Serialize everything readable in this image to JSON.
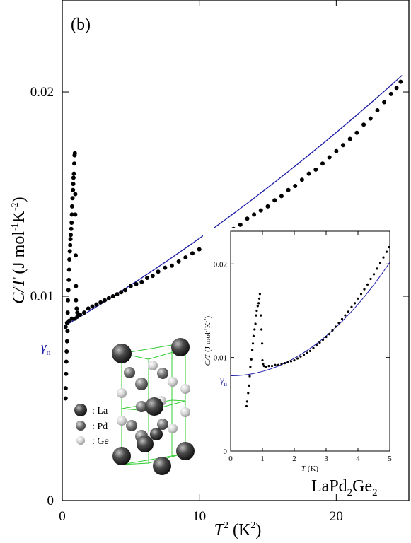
{
  "chart_data": [
    {
      "type": "scatter",
      "panel_label": "(b)",
      "compound": {
        "base": "LaPd",
        "sub1": "2",
        "mid": "Ge",
        "sub2": "2"
      },
      "xlabel": {
        "var": "T",
        "sup": "2",
        "unit": " (K",
        "unit_sup": "2",
        "close": ")"
      },
      "ylabel": {
        "var": "C/T",
        "unit": " (J mol",
        "s1": "-1",
        "k": "K",
        "s2": "-2",
        "close": ")"
      },
      "xlim": [
        0,
        25.3
      ],
      "ylim": [
        0,
        0.0245
      ],
      "x_ticks": [
        {
          "v": 0,
          "label": "0"
        },
        {
          "v": 10,
          "label": "10"
        },
        {
          "v": 20,
          "label": "20"
        }
      ],
      "y_ticks": [
        {
          "v": 0,
          "label": "0"
        },
        {
          "v": 0.01,
          "label": "0.01"
        },
        {
          "v": 0.02,
          "label": "0.02"
        }
      ],
      "gamma_label": "γn",
      "gamma_value": 0.00848,
      "fit": {
        "color": "#1a1aa8",
        "gamma": 0.00848,
        "beta": 0.000393,
        "delta": 4.2e-06,
        "x_range": [
          0.3,
          24.8
        ]
      },
      "points_color": "#000000",
      "series_main": [
        [
          0.25,
          0.0085
        ],
        [
          0.35,
          0.0087
        ],
        [
          0.5,
          0.0088
        ],
        [
          0.7,
          0.0089
        ],
        [
          0.9,
          0.0089
        ],
        [
          1.1,
          0.009
        ],
        [
          1.3,
          0.0091
        ],
        [
          1.6,
          0.0092
        ],
        [
          1.9,
          0.0094
        ],
        [
          2.2,
          0.0095
        ],
        [
          2.5,
          0.0096
        ],
        [
          2.8,
          0.0097
        ],
        [
          3.1,
          0.0098
        ],
        [
          3.4,
          0.0099
        ],
        [
          3.7,
          0.01
        ],
        [
          4.0,
          0.0101
        ],
        [
          4.3,
          0.0102
        ],
        [
          4.6,
          0.0103
        ],
        [
          5.0,
          0.0105
        ],
        [
          5.4,
          0.0106
        ],
        [
          5.8,
          0.0107
        ],
        [
          6.2,
          0.0109
        ],
        [
          6.6,
          0.011
        ],
        [
          7.0,
          0.0112
        ],
        [
          7.5,
          0.0114
        ],
        [
          8.0,
          0.0115
        ],
        [
          8.5,
          0.0117
        ],
        [
          9.0,
          0.0119
        ],
        [
          9.5,
          0.0121
        ],
        [
          10.0,
          0.0123
        ],
        [
          10.5,
          0.0125
        ],
        [
          11.0,
          0.0127
        ],
        [
          11.5,
          0.0129
        ],
        [
          12.0,
          0.0131
        ],
        [
          12.5,
          0.0133
        ],
        [
          13.0,
          0.0135
        ],
        [
          13.5,
          0.0138
        ],
        [
          14.0,
          0.014
        ],
        [
          14.5,
          0.0142
        ],
        [
          15.0,
          0.0144
        ],
        [
          15.5,
          0.0147
        ],
        [
          16.0,
          0.0149
        ],
        [
          16.5,
          0.0152
        ],
        [
          17.0,
          0.0154
        ],
        [
          17.5,
          0.0157
        ],
        [
          18.0,
          0.016
        ],
        [
          18.5,
          0.0162
        ],
        [
          19.0,
          0.0165
        ],
        [
          19.5,
          0.0168
        ],
        [
          20.0,
          0.0171
        ],
        [
          20.5,
          0.0174
        ],
        [
          21.0,
          0.0177
        ],
        [
          21.5,
          0.018
        ],
        [
          22.0,
          0.0184
        ],
        [
          22.5,
          0.0187
        ],
        [
          23.0,
          0.0191
        ],
        [
          23.5,
          0.0195
        ],
        [
          24.0,
          0.0199
        ],
        [
          24.4,
          0.0202
        ],
        [
          24.7,
          0.0205
        ]
      ],
      "series_transition": [
        [
          0.25,
          0.005
        ],
        [
          0.25,
          0.0055
        ],
        [
          0.28,
          0.0062
        ],
        [
          0.3,
          0.0068
        ],
        [
          0.32,
          0.0073
        ],
        [
          0.35,
          0.0078
        ],
        [
          0.38,
          0.0083
        ],
        [
          0.4,
          0.0092
        ],
        [
          0.42,
          0.0098
        ],
        [
          0.45,
          0.0103
        ],
        [
          0.48,
          0.0108
        ],
        [
          0.5,
          0.0113
        ],
        [
          0.52,
          0.0118
        ],
        [
          0.55,
          0.0122
        ],
        [
          0.58,
          0.0125
        ],
        [
          0.6,
          0.0128
        ],
        [
          0.62,
          0.013
        ],
        [
          0.65,
          0.0133
        ],
        [
          0.68,
          0.0136
        ],
        [
          0.7,
          0.014
        ],
        [
          0.72,
          0.0144
        ],
        [
          0.75,
          0.0148
        ],
        [
          0.78,
          0.0152
        ],
        [
          0.8,
          0.0155
        ],
        [
          0.82,
          0.0158
        ],
        [
          0.85,
          0.016
        ],
        [
          0.88,
          0.0165
        ],
        [
          0.9,
          0.0169
        ],
        [
          0.92,
          0.017
        ],
        [
          0.95,
          0.015
        ],
        [
          0.95,
          0.014
        ],
        [
          0.98,
          0.012
        ],
        [
          1.0,
          0.0105
        ],
        [
          1.0,
          0.0098
        ],
        [
          1.05,
          0.0094
        ],
        [
          1.1,
          0.0092
        ]
      ]
    },
    {
      "type": "scatter",
      "role": "inset",
      "xlabel": {
        "var": "T",
        "unit": " (K)"
      },
      "ylabel": {
        "var": "C/T",
        "unit": " (J mol",
        "s1": "-1",
        "k": "K",
        "s2": "-2",
        "close": ")"
      },
      "xlim": [
        0,
        5
      ],
      "ylim": [
        0,
        0.0235
      ],
      "x_ticks": [
        {
          "v": 0,
          "label": "0"
        },
        {
          "v": 1,
          "label": "1"
        },
        {
          "v": 2,
          "label": "2"
        },
        {
          "v": 3,
          "label": "3"
        },
        {
          "v": 4,
          "label": "4"
        },
        {
          "v": 5,
          "label": "5"
        }
      ],
      "y_ticks": [
        {
          "v": 0,
          "label": "0"
        },
        {
          "v": 0.01,
          "label": "0.01"
        },
        {
          "v": 0.02,
          "label": "0.02"
        }
      ],
      "gamma_label": "γn",
      "gamma_value": 0.00805,
      "fit": {
        "color": "#1a1aa8",
        "gamma": 0.00805,
        "beta": 0.000465,
        "delta": 8e-07,
        "x_range": [
          0,
          5
        ]
      },
      "series_main": [
        [
          1.1,
          0.009
        ],
        [
          1.2,
          0.0091
        ],
        [
          1.3,
          0.0091
        ],
        [
          1.4,
          0.0092
        ],
        [
          1.5,
          0.0092
        ],
        [
          1.6,
          0.0093
        ],
        [
          1.7,
          0.0094
        ],
        [
          1.8,
          0.0095
        ],
        [
          1.9,
          0.0096
        ],
        [
          2.0,
          0.0097
        ],
        [
          2.1,
          0.0099
        ],
        [
          2.2,
          0.0101
        ],
        [
          2.3,
          0.0103
        ],
        [
          2.4,
          0.0105
        ],
        [
          2.5,
          0.0107
        ],
        [
          2.6,
          0.011
        ],
        [
          2.7,
          0.0113
        ],
        [
          2.8,
          0.0116
        ],
        [
          2.9,
          0.0119
        ],
        [
          3.0,
          0.0122
        ],
        [
          3.1,
          0.0125
        ],
        [
          3.2,
          0.0129
        ],
        [
          3.3,
          0.0133
        ],
        [
          3.4,
          0.0137
        ],
        [
          3.5,
          0.0141
        ],
        [
          3.6,
          0.0145
        ],
        [
          3.7,
          0.0149
        ],
        [
          3.8,
          0.0154
        ],
        [
          3.9,
          0.0158
        ],
        [
          4.0,
          0.0163
        ],
        [
          4.1,
          0.0168
        ],
        [
          4.2,
          0.0173
        ],
        [
          4.3,
          0.0178
        ],
        [
          4.4,
          0.0184
        ],
        [
          4.5,
          0.0189
        ],
        [
          4.6,
          0.0195
        ],
        [
          4.7,
          0.0201
        ],
        [
          4.8,
          0.0207
        ],
        [
          4.9,
          0.0213
        ],
        [
          4.98,
          0.0218
        ]
      ],
      "series_transition": [
        [
          0.5,
          0.0048
        ],
        [
          0.52,
          0.0053
        ],
        [
          0.55,
          0.0062
        ],
        [
          0.58,
          0.007
        ],
        [
          0.6,
          0.008
        ],
        [
          0.62,
          0.009
        ],
        [
          0.65,
          0.0098
        ],
        [
          0.68,
          0.0108
        ],
        [
          0.7,
          0.0115
        ],
        [
          0.72,
          0.0123
        ],
        [
          0.75,
          0.013
        ],
        [
          0.78,
          0.0136
        ],
        [
          0.8,
          0.0145
        ],
        [
          0.82,
          0.015
        ],
        [
          0.85,
          0.0155
        ],
        [
          0.88,
          0.0158
        ],
        [
          0.9,
          0.0163
        ],
        [
          0.92,
          0.0168
        ],
        [
          0.95,
          0.0145
        ],
        [
          0.97,
          0.013
        ],
        [
          0.99,
          0.0115
        ],
        [
          1.0,
          0.0097
        ],
        [
          1.02,
          0.0093
        ],
        [
          1.05,
          0.0091
        ]
      ]
    }
  ],
  "legend": [
    {
      "symbol": "La-sphere",
      "label": ": La",
      "color": "#555555"
    },
    {
      "symbol": "Pd-sphere",
      "label": ": Pd",
      "color": "#8a8a8a"
    },
    {
      "symbol": "Ge-sphere",
      "label": ": Ge",
      "color": "#d8d8d8"
    }
  ]
}
